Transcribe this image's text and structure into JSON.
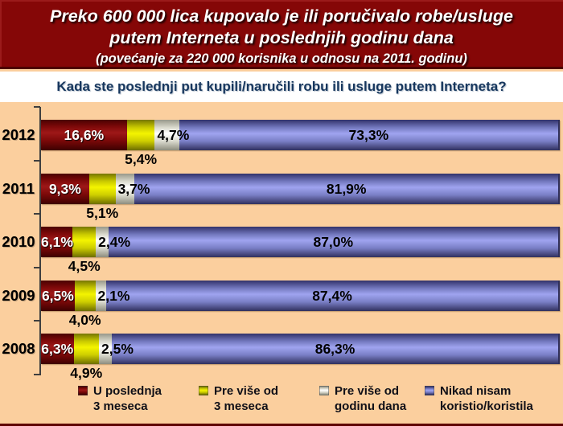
{
  "slide": {
    "title_line1": "Preko 600 000 lica kupovalo je ili poručivalo robe/usluge",
    "title_line2": "putem Interneta u poslednjih godinu dana",
    "subtitle": "(povećanje za 220 000 korisnika u odnosu na 2011. godinu)",
    "question": "Kada ste poslednji put kupili/naručili robu ili usluge putem Interneta?"
  },
  "colors": {
    "header_bg": "#850707",
    "header_border": "#4d0101",
    "chart_bg": "#fbcf9e",
    "question_text": "#17375e",
    "axis": "#3f3f3f",
    "series_recent": "#8b1010",
    "series_over3months": "#e8e800",
    "series_overyear": "#e0e0d0",
    "series_never": "#8a8fd8"
  },
  "chart_data": {
    "type": "bar",
    "orientation": "horizontal",
    "stacked": true,
    "unit": "%",
    "decimal_separator": ",",
    "xlim": [
      0,
      100
    ],
    "grid": false,
    "legend_position": "bottom",
    "categories": [
      "2012",
      "2011",
      "2010",
      "2009",
      "2008"
    ],
    "series": [
      {
        "name": "U poslednja 3 meseca",
        "values": [
          16.6,
          9.3,
          6.1,
          6.5,
          6.3
        ]
      },
      {
        "name": "Pre više od 3 meseca",
        "values": [
          5.4,
          5.1,
          4.5,
          4.0,
          4.9
        ]
      },
      {
        "name": "Pre više od godinu dana",
        "values": [
          4.7,
          3.7,
          2.4,
          2.1,
          2.5
        ]
      },
      {
        "name": "Nikad nisam koristio/koristila",
        "values": [
          73.3,
          81.9,
          87.0,
          87.4,
          86.3
        ]
      }
    ]
  },
  "legend": {
    "items": [
      {
        "line1": "U poslednja",
        "line2": "3 meseca"
      },
      {
        "line1": "Pre više od",
        "line2": "3 meseca"
      },
      {
        "line1": "Pre više od",
        "line2": "godinu dana"
      },
      {
        "line1": "Nikad nisam",
        "line2": "koristio/koristila"
      }
    ]
  }
}
